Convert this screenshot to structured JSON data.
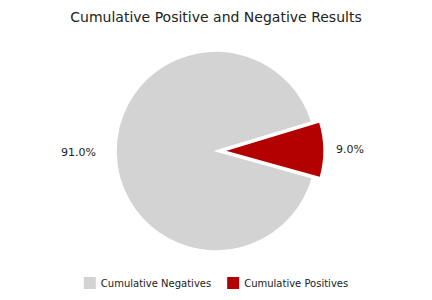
{
  "chart_data": {
    "type": "pie",
    "title": "Cumulative Positive and Negative Results",
    "categories": [
      "Cumulative Negatives",
      "Cumulative Positives"
    ],
    "values": [
      91.0,
      9.0
    ],
    "value_labels": [
      "91.0%",
      "9.0%"
    ],
    "colors": [
      "#d3d3d3",
      "#b30000"
    ],
    "data_labels": true,
    "legend": "bottom"
  }
}
